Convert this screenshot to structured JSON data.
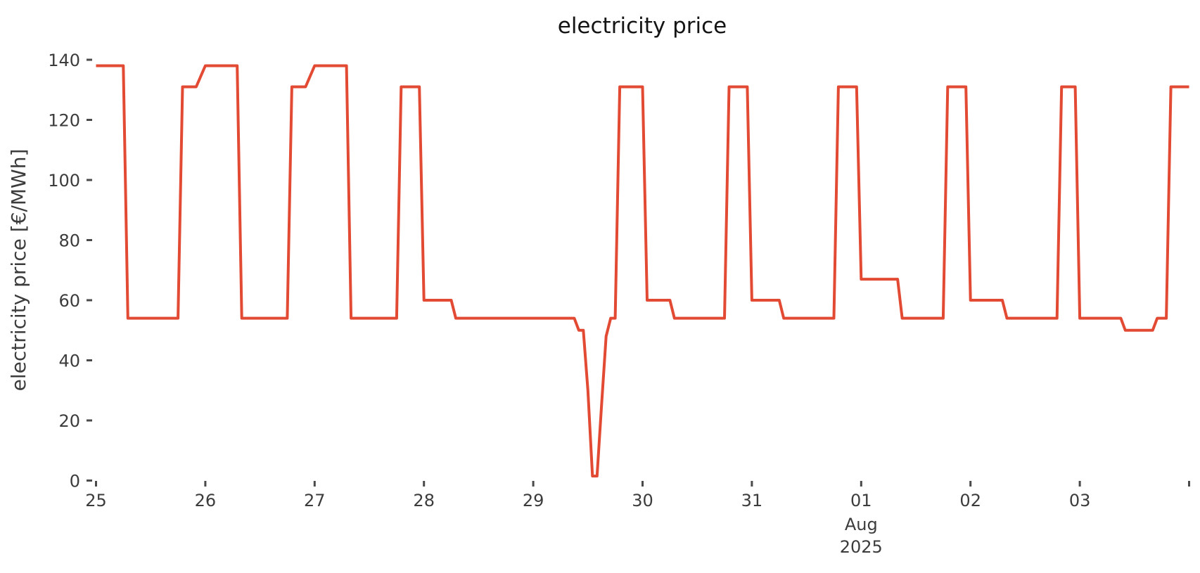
{
  "title": "electricity price",
  "y_axis_label": "electricity price [€/MWh]",
  "chart_data": {
    "type": "line",
    "title": "electricity price",
    "ylabel": "electricity price [€/MWh]",
    "xlabel": "",
    "line_color": "#e24a33",
    "grid": false,
    "legend": "none",
    "ylim": [
      0,
      140
    ],
    "y_ticks": [
      0,
      20,
      40,
      60,
      80,
      100,
      120,
      140
    ],
    "x_origin": "2025-07-25 00:00",
    "x_unit": "hours",
    "xlim_hours": [
      0,
      240
    ],
    "x_tick_hours": [
      0,
      24,
      48,
      72,
      96,
      120,
      144,
      168,
      192,
      216
    ],
    "x_tick_labels": [
      "25",
      "26",
      "27",
      "28",
      "29",
      "30",
      "31",
      "01",
      "02",
      "03"
    ],
    "x_edge_tick_hours": [
      240
    ],
    "month_label": {
      "tick_index": 7,
      "lines": [
        "Aug",
        "2025"
      ]
    },
    "points_format": [
      "hours_since_origin",
      "price_eur_per_mwh"
    ],
    "points": [
      [
        0,
        138
      ],
      [
        6,
        138
      ],
      [
        7,
        54
      ],
      [
        18,
        54
      ],
      [
        19,
        131
      ],
      [
        22,
        131
      ],
      [
        24,
        138
      ],
      [
        31,
        138
      ],
      [
        32,
        54
      ],
      [
        42,
        54
      ],
      [
        43,
        131
      ],
      [
        46,
        131
      ],
      [
        48,
        138
      ],
      [
        55,
        138
      ],
      [
        56,
        54
      ],
      [
        66,
        54
      ],
      [
        67,
        131
      ],
      [
        71,
        131
      ],
      [
        72,
        60
      ],
      [
        78,
        60
      ],
      [
        79,
        54
      ],
      [
        105,
        54
      ],
      [
        106,
        50
      ],
      [
        107,
        50
      ],
      [
        108,
        30
      ],
      [
        109,
        1.5
      ],
      [
        110,
        1.5
      ],
      [
        111,
        25
      ],
      [
        112,
        48
      ],
      [
        113,
        54
      ],
      [
        114,
        54
      ],
      [
        115,
        131
      ],
      [
        120,
        131
      ],
      [
        121,
        60
      ],
      [
        126,
        60
      ],
      [
        127,
        54
      ],
      [
        138,
        54
      ],
      [
        139,
        131
      ],
      [
        143,
        131
      ],
      [
        144,
        60
      ],
      [
        150,
        60
      ],
      [
        151,
        54
      ],
      [
        162,
        54
      ],
      [
        163,
        131
      ],
      [
        167,
        131
      ],
      [
        168,
        67
      ],
      [
        176,
        67
      ],
      [
        177,
        54
      ],
      [
        186,
        54
      ],
      [
        187,
        131
      ],
      [
        191,
        131
      ],
      [
        192,
        60
      ],
      [
        199,
        60
      ],
      [
        200,
        54
      ],
      [
        211,
        54
      ],
      [
        212,
        131
      ],
      [
        215,
        131
      ],
      [
        216,
        54
      ],
      [
        225,
        54
      ],
      [
        226,
        50
      ],
      [
        232,
        50
      ],
      [
        233,
        54
      ],
      [
        235,
        54
      ],
      [
        236,
        131
      ],
      [
        240,
        131
      ]
    ]
  }
}
